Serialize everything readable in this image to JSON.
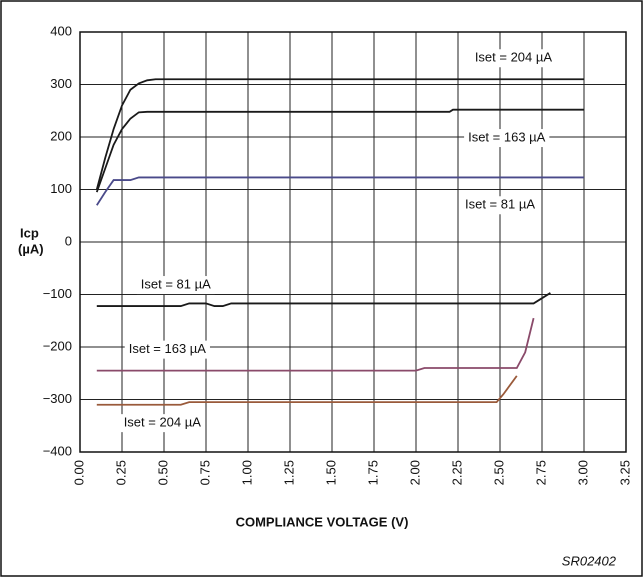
{
  "chart_data": {
    "type": "line",
    "ylabel": [
      "Icp",
      "(µA)"
    ],
    "xlabel": "COMPLIANCE VOLTAGE (V)",
    "note": "SR02402",
    "xlim": [
      0,
      3.25
    ],
    "ylim": [
      -400,
      400
    ],
    "xticks": [
      {
        "value": 0,
        "label": "0.00"
      },
      0.25,
      {
        "value": 0.5,
        "label": "0.50"
      },
      0.75,
      {
        "value": 1,
        "label": "1.00"
      },
      1.25,
      {
        "value": 1.5,
        "label": "1.50"
      },
      1.75,
      {
        "value": 2,
        "label": "2.00"
      },
      2.25,
      {
        "value": 2.5,
        "label": "2.50"
      },
      2.75,
      {
        "value": 3,
        "label": "3.00"
      },
      3.25
    ],
    "yticks": [
      400,
      300,
      200,
      100,
      0,
      {
        "value": -100,
        "label": "−100"
      },
      {
        "value": -200,
        "label": "−200"
      },
      {
        "value": -300,
        "label": "−300"
      },
      {
        "value": -400,
        "label": "−400"
      }
    ],
    "grid": true,
    "series": [
      {
        "name": "Iset = 204 µA",
        "color": "#1a1a1a",
        "x": [
          0.1,
          0.15,
          0.2,
          0.25,
          0.3,
          0.35,
          0.4,
          0.45,
          3.0
        ],
        "values": [
          100,
          160,
          215,
          260,
          290,
          302,
          308,
          310,
          310
        ]
      },
      {
        "name": "Iset = 163 µA",
        "color": "#1a1a1a",
        "x": [
          0.1,
          0.15,
          0.2,
          0.25,
          0.3,
          0.35,
          0.4,
          2.2,
          2.22,
          3.0
        ],
        "values": [
          95,
          140,
          185,
          215,
          235,
          247,
          248,
          248,
          252,
          252
        ]
      },
      {
        "name": "Iset = 81 µA",
        "color": "#4a4a8a",
        "x": [
          0.1,
          0.15,
          0.2,
          0.3,
          0.35,
          3.0
        ],
        "values": [
          70,
          95,
          118,
          118,
          123,
          123
        ]
      },
      {
        "name": "Iset = 81 µA",
        "color": "#1a1a1a",
        "x": [
          0.1,
          0.6,
          0.65,
          0.75,
          0.8,
          0.85,
          0.9,
          2.7,
          2.8
        ],
        "values": [
          -122,
          -122,
          -117,
          -117,
          -122,
          -122,
          -117,
          -117,
          -97
        ]
      },
      {
        "name": "Iset = 163 µA",
        "color": "#8a4a6a",
        "x": [
          0.1,
          2.0,
          2.05,
          2.6,
          2.65,
          2.7
        ],
        "values": [
          -245,
          -245,
          -240,
          -240,
          -210,
          -145
        ]
      },
      {
        "name": "Iset = 204 µA",
        "color": "#9a5a3a",
        "x": [
          0.1,
          0.6,
          0.65,
          2.48,
          2.52,
          2.6
        ],
        "values": [
          -310,
          -310,
          -305,
          -305,
          -290,
          -255
        ]
      }
    ]
  }
}
